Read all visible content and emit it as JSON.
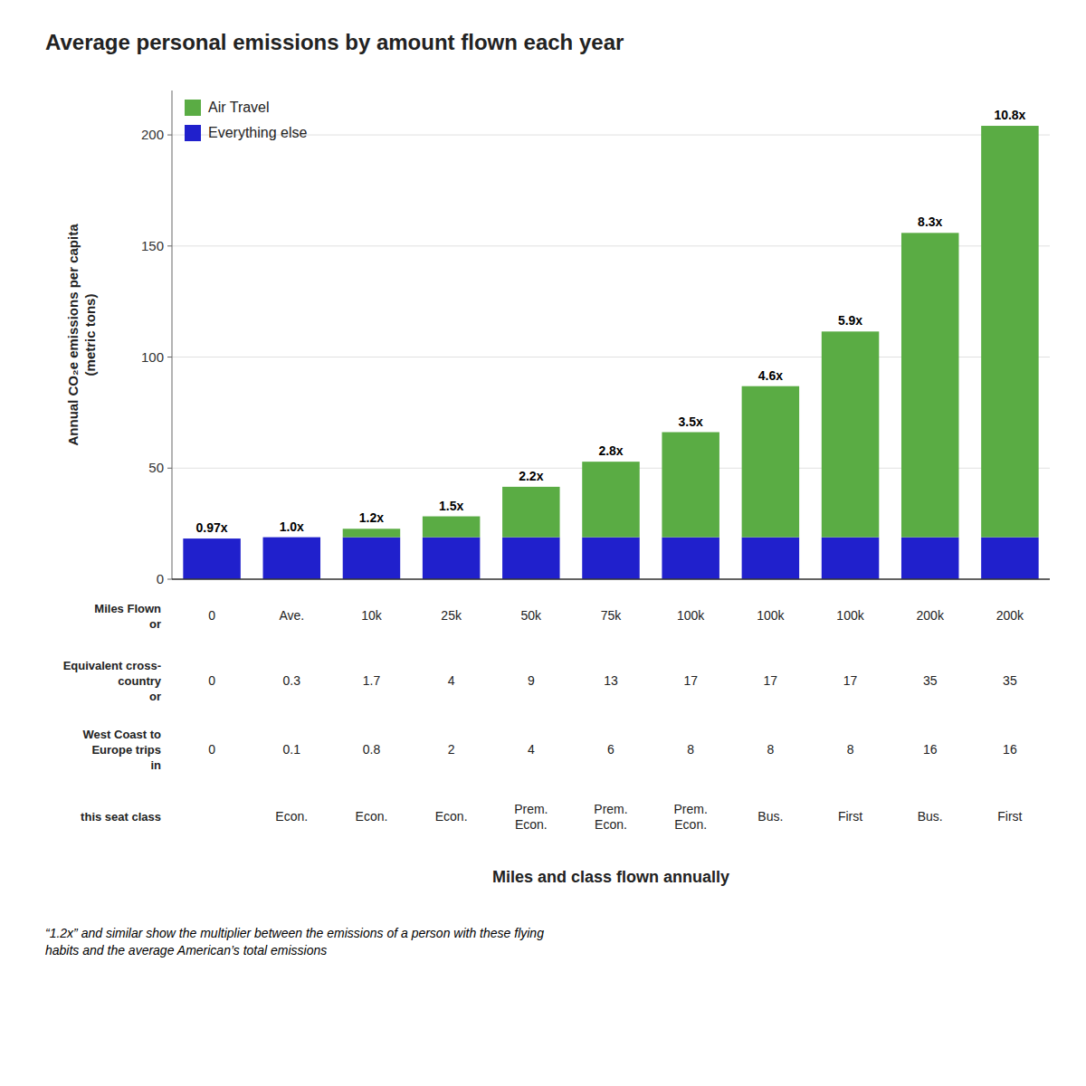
{
  "chart_data": {
    "type": "bar",
    "stacked": true,
    "title": "Average personal emissions by amount flown each year",
    "xlabel": "Miles and class flown annually",
    "ylabel": "Annual CO₂e emissions per capita\n(metric tons)",
    "footnote": "“1.2x” and similar show the multiplier between the emissions of a person with these flying\nhabits and the average American’s total emissions",
    "categories": [
      "0",
      "Ave.",
      "10k",
      "25k",
      "50k",
      "75k",
      "100k",
      "100k",
      "100k",
      "200k",
      "200k"
    ],
    "category_label": "Miles Flown\nor",
    "series": [
      {
        "name": "Everything else",
        "color": "#2020cc",
        "values": [
          18.3,
          18.9,
          18.9,
          18.9,
          18.9,
          18.9,
          18.9,
          18.9,
          18.9,
          18.9,
          18.9
        ]
      },
      {
        "name": "Air Travel",
        "color": "#5aac44",
        "values": [
          0.0,
          0.0,
          3.8,
          9.4,
          22.7,
          34.0,
          47.3,
          68.0,
          92.6,
          137.0,
          185.2
        ]
      }
    ],
    "annotations": [
      "0.97x",
      "1.0x",
      "1.2x",
      "1.5x",
      "2.2x",
      "2.8x",
      "3.5x",
      "4.6x",
      "5.9x",
      "8.3x",
      "10.8x"
    ],
    "table": [
      {
        "label": "Equivalent cross-\ncountry\nor",
        "cells": [
          "0",
          "0.3",
          "1.7",
          "4",
          "9",
          "13",
          "17",
          "17",
          "17",
          "35",
          "35"
        ]
      },
      {
        "label": "West Coast to\nEurope trips\nin",
        "cells": [
          "0",
          "0.1",
          "0.8",
          "2",
          "4",
          "6",
          "8",
          "8",
          "8",
          "16",
          "16"
        ]
      },
      {
        "label": "this seat class",
        "cells": [
          null,
          "Econ.",
          "Econ.",
          "Econ.",
          "Prem.\nEcon.",
          "Prem.\nEcon.",
          "Prem.\nEcon.",
          "Bus.",
          "First",
          "Bus.",
          "First"
        ]
      }
    ],
    "ylim": [
      0,
      220
    ],
    "yticks": [
      0,
      50,
      100,
      150,
      200
    ],
    "grid": true,
    "legend": "upper left",
    "tick_labels": "y"
  }
}
